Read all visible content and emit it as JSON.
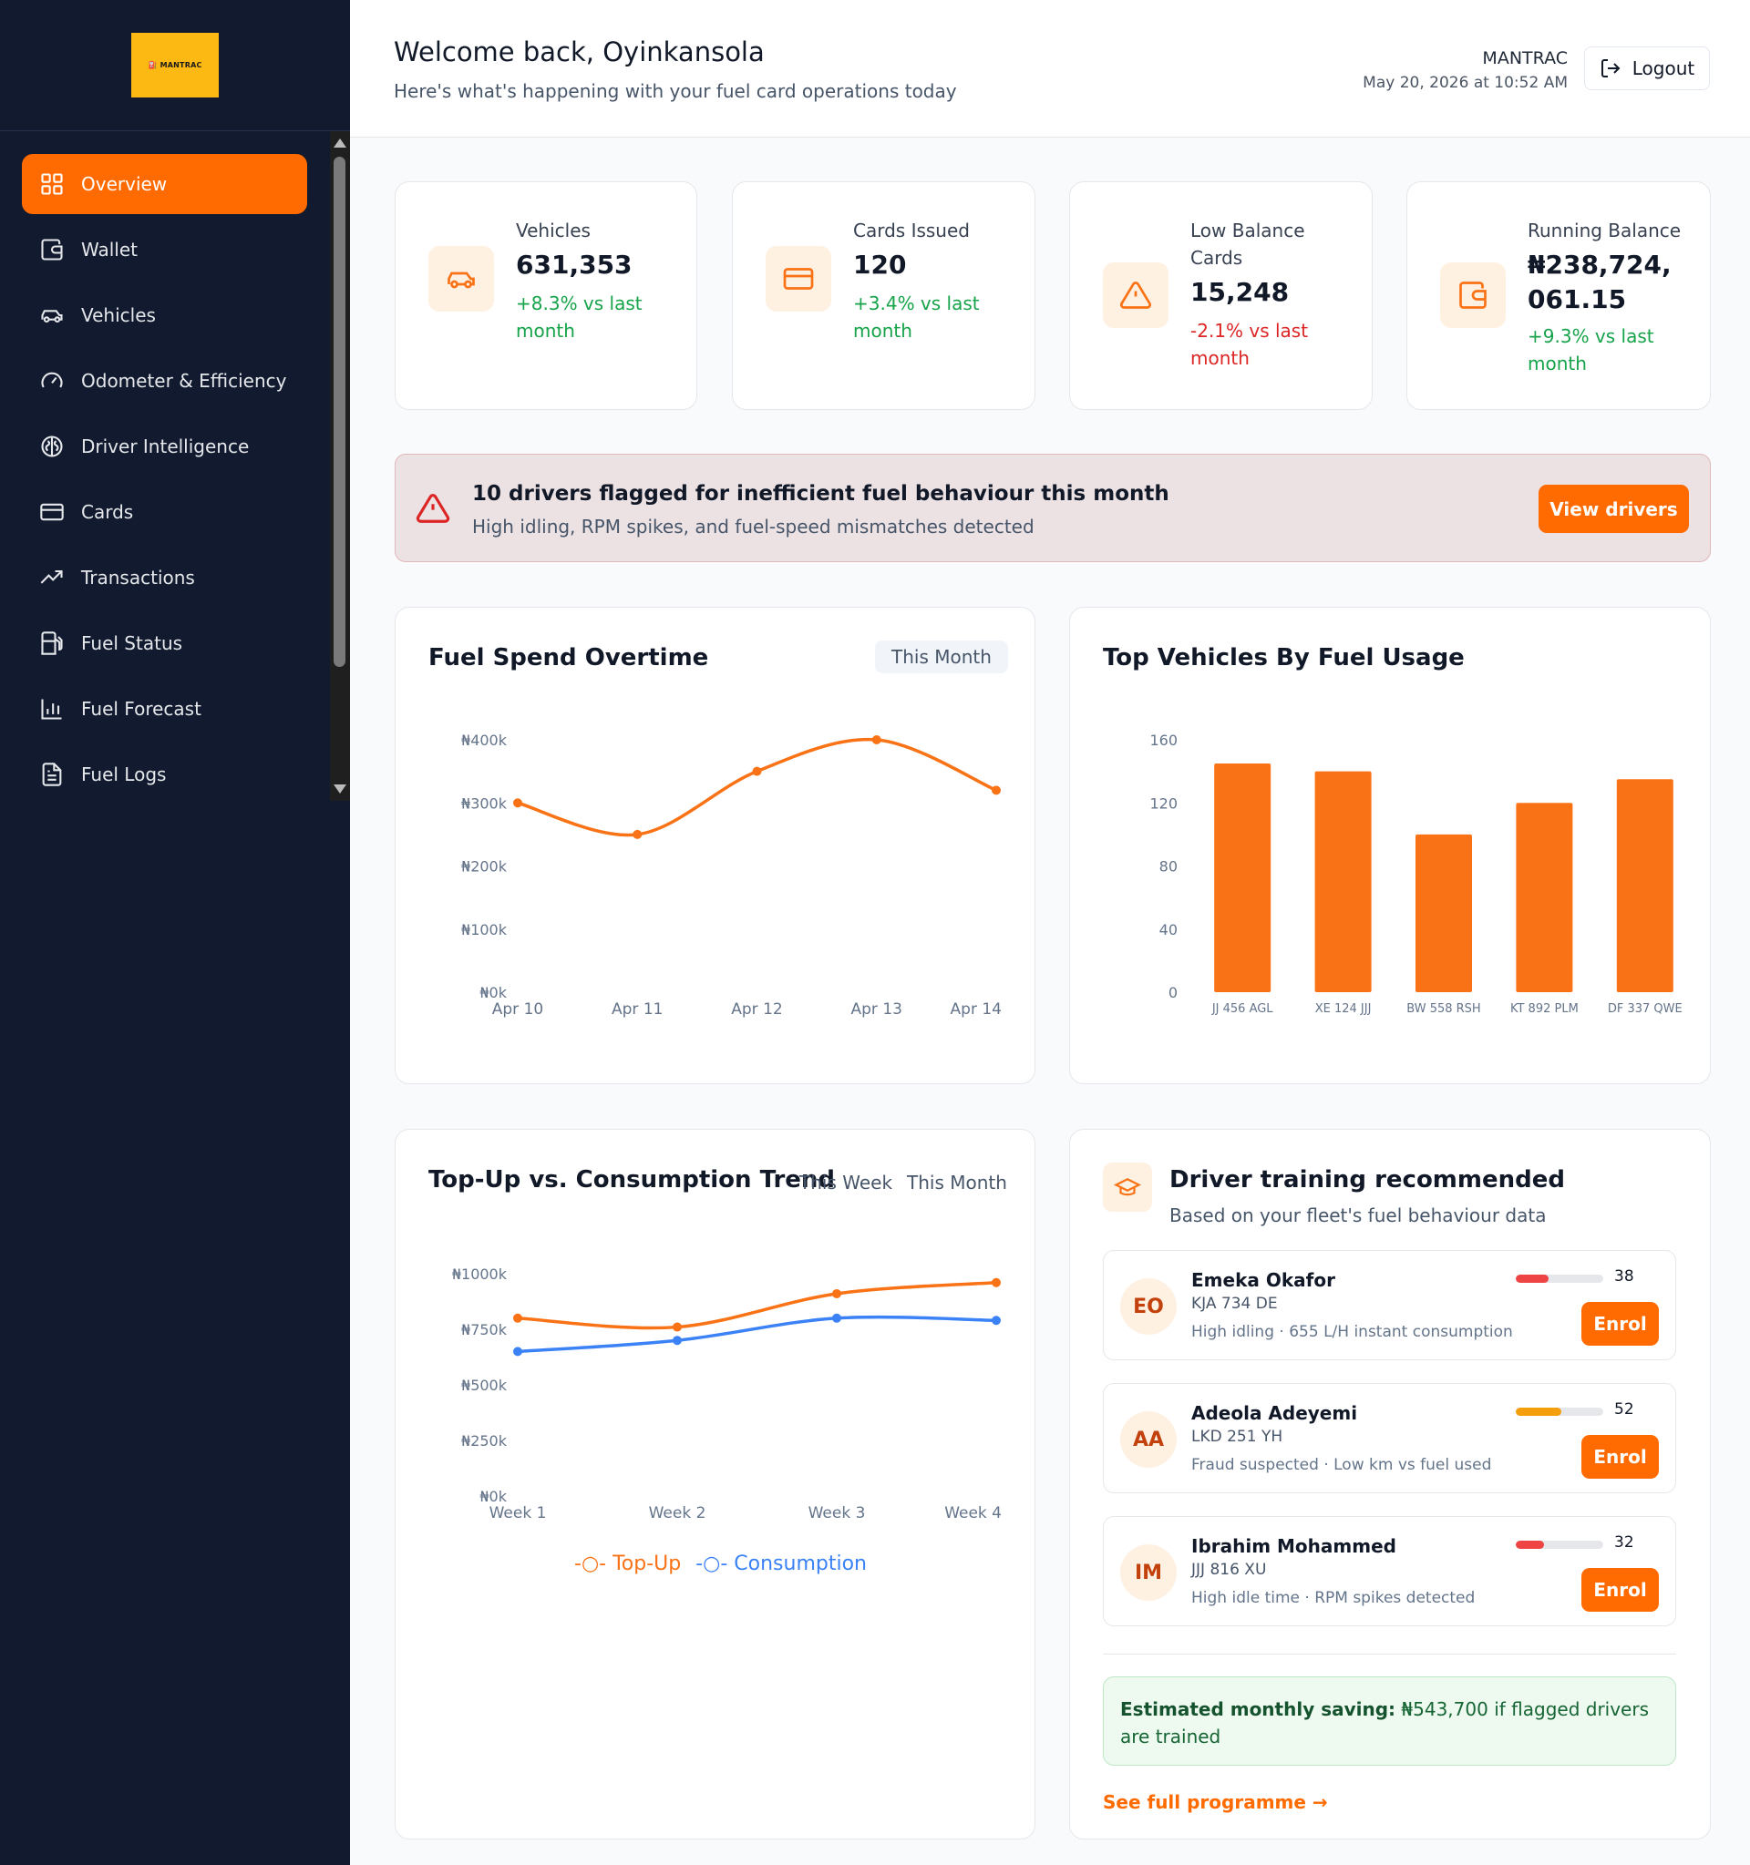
{
  "sidebar": {
    "logo_text": "⛽ MANTRAC",
    "items": [
      {
        "label": "Overview",
        "icon": "grid-icon"
      },
      {
        "label": "Wallet",
        "icon": "wallet-icon"
      },
      {
        "label": "Vehicles",
        "icon": "car-icon"
      },
      {
        "label": "Odometer & Efficiency",
        "icon": "gauge-icon"
      },
      {
        "label": "Driver Intelligence",
        "icon": "brain-icon"
      },
      {
        "label": "Cards",
        "icon": "card-icon"
      },
      {
        "label": "Transactions",
        "icon": "trend-icon"
      },
      {
        "label": "Fuel Status",
        "icon": "fuel-pump-icon"
      },
      {
        "label": "Fuel Forecast",
        "icon": "bar-chart-icon"
      },
      {
        "label": "Fuel Logs",
        "icon": "file-icon"
      }
    ]
  },
  "header": {
    "welcome": "Welcome back, Oyinkansola",
    "subtitle": "Here's what's happening with your fuel card operations today",
    "org": "MANTRAC",
    "datetime": "May 20, 2026 at 10:52 AM",
    "logout": "Logout"
  },
  "stats": [
    {
      "label": "Vehicles",
      "value": "631,353",
      "change": "+8.3% vs last month",
      "trend": "up"
    },
    {
      "label": "Cards Issued",
      "value": "120",
      "change": "+3.4% vs last month",
      "trend": "up"
    },
    {
      "label": "Low Balance Cards",
      "value": "15,248",
      "change": "-2.1% vs last month",
      "trend": "down"
    },
    {
      "label": "Running Balance",
      "value": "₦238,724,061.15",
      "change": "+9.3% vs last month",
      "trend": "up"
    }
  ],
  "alert": {
    "title": "10 drivers flagged for inefficient fuel behaviour this month",
    "subtitle": "High idling, RPM spikes, and fuel-speed mismatches detected",
    "button": "View drivers"
  },
  "fuel_spend": {
    "title": "Fuel Spend Overtime",
    "period": "This Month"
  },
  "top_vehicles": {
    "title": "Top Vehicles By Fuel Usage"
  },
  "trend": {
    "title": "Top-Up vs. Consumption Trend",
    "toggle_week": "This Week",
    "toggle_month": "This Month",
    "legend_topup": "Top-Up",
    "legend_consumption": "Consumption"
  },
  "training": {
    "title": "Driver training recommended",
    "subtitle": "Based on your fleet's fuel behaviour data",
    "drivers": [
      {
        "initials": "EO",
        "name": "Emeka Okafor",
        "plate": "KJA 734 DE",
        "issue": "High idling · 655 L/H instant consumption",
        "score": 38,
        "score_color": "#ef4444",
        "enrol": "Enrol"
      },
      {
        "initials": "AA",
        "name": "Adeola Adeyemi",
        "plate": "LKD 251 YH",
        "issue": "Fraud suspected · Low km vs fuel used",
        "score": 52,
        "score_color": "#f59e0b",
        "enrol": "Enrol"
      },
      {
        "initials": "IM",
        "name": "Ibrahim Mohammed",
        "plate": "JJJ 816 XU",
        "issue": "High idle time · RPM spikes detected",
        "score": 32,
        "score_color": "#ef4444",
        "enrol": "Enrol"
      }
    ],
    "saving_label": "Estimated monthly saving:",
    "saving_text": "₦543,700 if flagged drivers are trained",
    "see_full": "See full programme →"
  },
  "chart_data": [
    {
      "type": "line",
      "title": "Fuel Spend Overtime",
      "x": [
        "Apr 10",
        "Apr 11",
        "Apr 12",
        "Apr 13",
        "Apr 14"
      ],
      "series": [
        {
          "values": [
            300000,
            250000,
            350000,
            400000,
            320000
          ],
          "color": "#f97316"
        }
      ],
      "y_ticks": [
        "₦0k",
        "₦100k",
        "₦200k",
        "₦300k",
        "₦400k"
      ],
      "ylim": [
        0,
        400000
      ],
      "grid": false
    },
    {
      "type": "bar",
      "title": "Top Vehicles By Fuel Usage",
      "categories": [
        "JJ 456 AGL",
        "XE 124 JJJ",
        "BW 558 RSH",
        "KT 892 PLM",
        "DF 337 QWE"
      ],
      "values": [
        145,
        140,
        100,
        120,
        135
      ],
      "y_ticks": [
        "0",
        "40",
        "80",
        "120",
        "160"
      ],
      "ylim": [
        0,
        160
      ],
      "color": "#f97316",
      "grid": false
    },
    {
      "type": "line",
      "title": "Top-Up vs. Consumption Trend",
      "x": [
        "Week 1",
        "Week 2",
        "Week 3",
        "Week 4"
      ],
      "series": [
        {
          "name": "Top-Up",
          "values": [
            800000,
            760000,
            910000,
            960000
          ],
          "color": "#f97316"
        },
        {
          "name": "Consumption",
          "values": [
            650000,
            700000,
            800000,
            790000
          ],
          "color": "#3b82f6"
        }
      ],
      "y_ticks": [
        "₦0k",
        "₦250k",
        "₦500k",
        "₦750k",
        "₦1000k"
      ],
      "ylim": [
        0,
        1000000
      ],
      "legend": "bottom",
      "grid": false
    }
  ]
}
